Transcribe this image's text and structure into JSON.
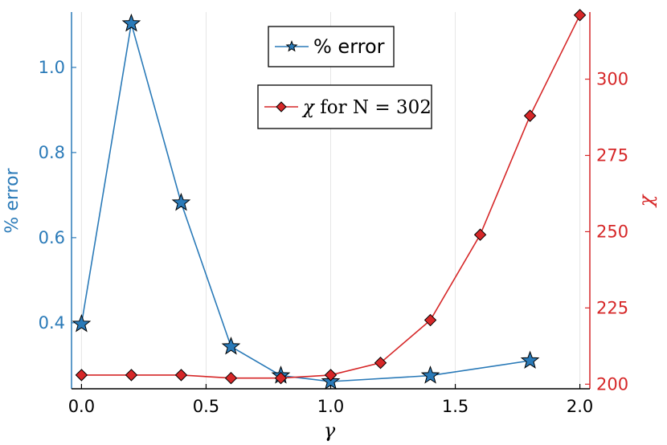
{
  "chart_data": {
    "type": "line",
    "xlabel": "γ",
    "ylabel_left": "% error",
    "ylabel_right": "χ",
    "xlim": [
      -0.04,
      2.04
    ],
    "xticks": [
      "0.0",
      "0.5",
      "1.0",
      "1.5",
      "2.0"
    ],
    "ylim_left": [
      0.245,
      1.13
    ],
    "yticks_left": [
      "0.4",
      "0.6",
      "0.8",
      "1.0"
    ],
    "ylim_right": [
      198.5,
      322
    ],
    "yticks_right": [
      "200",
      "225",
      "250",
      "275",
      "300"
    ],
    "grid": true,
    "series": [
      {
        "name": "% error",
        "axis": "left",
        "marker": "star",
        "color": "#2a7ab8",
        "x": [
          0.0,
          0.2,
          0.4,
          0.6,
          0.8,
          1.0,
          1.4,
          1.8
        ],
        "y": [
          0.397,
          1.103,
          0.682,
          0.344,
          0.276,
          0.262,
          0.276,
          0.311
        ]
      },
      {
        "name": "χ for N = 302",
        "axis": "right",
        "marker": "diamond",
        "color": "#d62728",
        "x": [
          0.0,
          0.2,
          0.4,
          0.6,
          0.8,
          1.0,
          1.2,
          1.4,
          1.6,
          1.8,
          2.0
        ],
        "y": [
          203,
          203,
          203,
          202,
          202,
          203,
          207,
          221,
          249,
          288,
          321
        ]
      }
    ],
    "legend": [
      {
        "label": "% error",
        "placement": "top-center"
      },
      {
        "label_prefix": "χ",
        "label_suffix": " for N = 302",
        "placement": "top-center"
      }
    ]
  }
}
